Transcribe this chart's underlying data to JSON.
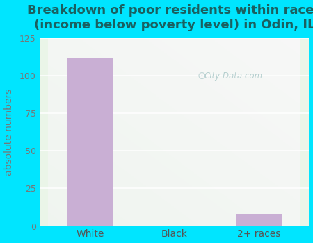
{
  "categories": [
    "White",
    "Black",
    "2+ races"
  ],
  "values": [
    112,
    0,
    8
  ],
  "bar_color": "#c9afd4",
  "title_line1": "Breakdown of poor residents within races",
  "title_line2": "(income below poverty level) in Odin, IL",
  "ylabel": "absolute numbers",
  "ylim": [
    0,
    125
  ],
  "yticks": [
    0,
    25,
    50,
    75,
    100,
    125
  ],
  "bg_outer": "#00e5ff",
  "bg_plot_topleft": "#e8f5e2",
  "bg_plot_topright": "#f5fcf5",
  "watermark": "City-Data.com",
  "title_fontsize": 13,
  "label_fontsize": 10,
  "tick_fontsize": 9,
  "tick_color": "#777777",
  "title_color": "#1a6060",
  "xlabel_color": "#555555"
}
